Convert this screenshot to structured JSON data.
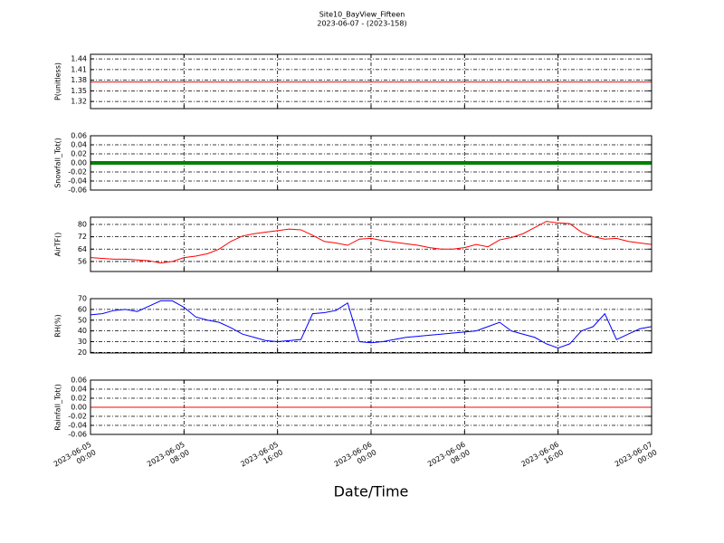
{
  "chart_data": [
    {
      "type": "line",
      "title": "Site10_BayView_Fifteen",
      "subtitle": "2023-06-07 - (2023-158)",
      "ylabel": "P(unitless)",
      "xlim": [
        "2023-06-05 00:00",
        "2023-06-07 00:00"
      ],
      "ylim": [
        1.3,
        1.453
      ],
      "yticks": [
        1.32,
        1.35,
        1.38,
        1.41,
        1.44
      ],
      "grid": true,
      "x": [
        "2023-06-05 00:00",
        "2023-06-05 01:00",
        "2023-06-05 02:00",
        "2023-06-05 03:00",
        "2023-06-05 04:00",
        "2023-06-05 05:00",
        "2023-06-05 06:00",
        "2023-06-05 07:00",
        "2023-06-05 08:00",
        "2023-06-05 09:00",
        "2023-06-05 10:00",
        "2023-06-05 11:00",
        "2023-06-05 12:00",
        "2023-06-05 13:00",
        "2023-06-05 14:00",
        "2023-06-05 15:00",
        "2023-06-05 16:00",
        "2023-06-05 17:00",
        "2023-06-05 18:00",
        "2023-06-05 19:00",
        "2023-06-05 20:00",
        "2023-06-05 21:00",
        "2023-06-05 22:00",
        "2023-06-05 23:00",
        "2023-06-06 00:00",
        "2023-06-06 01:00",
        "2023-06-06 02:00",
        "2023-06-06 03:00",
        "2023-06-06 04:00",
        "2023-06-06 05:00",
        "2023-06-06 06:00",
        "2023-06-06 07:00",
        "2023-06-06 08:00",
        "2023-06-06 09:00",
        "2023-06-06 10:00",
        "2023-06-06 11:00",
        "2023-06-06 12:00",
        "2023-06-06 13:00",
        "2023-06-06 14:00",
        "2023-06-06 15:00",
        "2023-06-06 16:00",
        "2023-06-06 17:00",
        "2023-06-06 18:00",
        "2023-06-06 19:00",
        "2023-06-06 20:00",
        "2023-06-06 21:00",
        "2023-06-06 22:00",
        "2023-06-06 23:00",
        "2023-06-07 00:00"
      ],
      "series": [
        {
          "name": "P",
          "color": "#ff0000",
          "width": 1,
          "values": [
            1.375,
            1.375,
            1.375,
            1.375,
            1.375,
            1.375,
            1.375,
            1.375,
            1.375,
            1.375,
            1.375,
            1.375,
            1.375,
            1.375,
            1.375,
            1.375,
            1.375,
            1.375,
            1.375,
            1.375,
            1.375,
            1.375,
            1.375,
            1.375,
            1.375,
            1.375,
            1.375,
            1.375,
            1.375,
            1.375,
            1.375,
            1.375,
            1.375,
            1.375,
            1.375,
            1.375,
            1.375,
            1.375,
            1.375,
            1.375,
            1.375,
            1.375,
            1.375,
            1.375,
            1.375,
            1.375,
            1.375,
            1.375,
            1.375
          ]
        }
      ]
    },
    {
      "type": "line",
      "ylabel": "Snowfall_Tot()",
      "xlim": [
        "2023-06-05 00:00",
        "2023-06-07 00:00"
      ],
      "ylim": [
        -0.06,
        0.06
      ],
      "yticks": [
        -0.06,
        -0.04,
        -0.02,
        {
          "value": 0,
          "label": "0.00"
        },
        0.02,
        0.04,
        0.06
      ],
      "grid": true,
      "x": [
        "2023-06-05 00:00",
        "2023-06-05 01:00",
        "2023-06-05 02:00",
        "2023-06-05 03:00",
        "2023-06-05 04:00",
        "2023-06-05 05:00",
        "2023-06-05 06:00",
        "2023-06-05 07:00",
        "2023-06-05 08:00",
        "2023-06-05 09:00",
        "2023-06-05 10:00",
        "2023-06-05 11:00",
        "2023-06-05 12:00",
        "2023-06-05 13:00",
        "2023-06-05 14:00",
        "2023-06-05 15:00",
        "2023-06-05 16:00",
        "2023-06-05 17:00",
        "2023-06-05 18:00",
        "2023-06-05 19:00",
        "2023-06-05 20:00",
        "2023-06-05 21:00",
        "2023-06-05 22:00",
        "2023-06-05 23:00",
        "2023-06-06 00:00",
        "2023-06-06 01:00",
        "2023-06-06 02:00",
        "2023-06-06 03:00",
        "2023-06-06 04:00",
        "2023-06-06 05:00",
        "2023-06-06 06:00",
        "2023-06-06 07:00",
        "2023-06-06 08:00",
        "2023-06-06 09:00",
        "2023-06-06 10:00",
        "2023-06-06 11:00",
        "2023-06-06 12:00",
        "2023-06-06 13:00",
        "2023-06-06 14:00",
        "2023-06-06 15:00",
        "2023-06-06 16:00",
        "2023-06-06 17:00",
        "2023-06-06 18:00",
        "2023-06-06 19:00",
        "2023-06-06 20:00",
        "2023-06-06 21:00",
        "2023-06-06 22:00",
        "2023-06-06 23:00",
        "2023-06-07 00:00"
      ],
      "series": [
        {
          "name": "Snowfall_Tot",
          "color": "#008000",
          "width": 4,
          "values": [
            0,
            0,
            0,
            0,
            0,
            0,
            0,
            0,
            0,
            0,
            0,
            0,
            0,
            0,
            0,
            0,
            0,
            0,
            0,
            0,
            0,
            0,
            0,
            0,
            0,
            0,
            0,
            0,
            0,
            0,
            0,
            0,
            0,
            0,
            0,
            0,
            0,
            0,
            0,
            0,
            0,
            0,
            0,
            0,
            0,
            0,
            0,
            0,
            0
          ]
        }
      ]
    },
    {
      "type": "line",
      "ylabel": "AirTF()",
      "xlim": [
        "2023-06-05 00:00",
        "2023-06-07 00:00"
      ],
      "ylim": [
        49.5,
        84.7
      ],
      "yticks": [
        56,
        64,
        72,
        80
      ],
      "grid": true,
      "x": [
        "2023-06-05 00:00",
        "2023-06-05 01:00",
        "2023-06-05 02:00",
        "2023-06-05 03:00",
        "2023-06-05 04:00",
        "2023-06-05 05:00",
        "2023-06-05 06:00",
        "2023-06-05 07:00",
        "2023-06-05 08:00",
        "2023-06-05 09:00",
        "2023-06-05 10:00",
        "2023-06-05 11:00",
        "2023-06-05 12:00",
        "2023-06-05 13:00",
        "2023-06-05 14:00",
        "2023-06-05 15:00",
        "2023-06-05 16:00",
        "2023-06-05 17:00",
        "2023-06-05 18:00",
        "2023-06-05 19:00",
        "2023-06-05 20:00",
        "2023-06-05 21:00",
        "2023-06-05 22:00",
        "2023-06-05 23:00",
        "2023-06-06 00:00",
        "2023-06-06 01:00",
        "2023-06-06 02:00",
        "2023-06-06 03:00",
        "2023-06-06 04:00",
        "2023-06-06 05:00",
        "2023-06-06 06:00",
        "2023-06-06 07:00",
        "2023-06-06 08:00",
        "2023-06-06 09:00",
        "2023-06-06 10:00",
        "2023-06-06 11:00",
        "2023-06-06 12:00",
        "2023-06-06 13:00",
        "2023-06-06 14:00",
        "2023-06-06 15:00",
        "2023-06-06 16:00",
        "2023-06-06 17:00",
        "2023-06-06 18:00",
        "2023-06-06 19:00",
        "2023-06-06 20:00",
        "2023-06-06 21:00",
        "2023-06-06 22:00",
        "2023-06-06 23:00",
        "2023-06-07 00:00"
      ],
      "series": [
        {
          "name": "AirTF",
          "color": "#ff0000",
          "width": 1,
          "values": [
            58.5,
            58,
            57.5,
            57.5,
            57,
            56.5,
            55,
            56,
            58.5,
            59.5,
            61,
            64,
            69,
            72.5,
            74,
            75,
            76,
            77,
            76.5,
            73,
            69,
            68,
            66.5,
            70.5,
            71,
            69.5,
            68.5,
            67.5,
            66.5,
            65,
            64,
            64,
            65,
            67,
            65.5,
            70,
            71.5,
            74,
            78,
            82,
            81,
            80.5,
            75,
            72,
            70.5,
            71,
            69,
            68,
            67
          ]
        }
      ]
    },
    {
      "type": "line",
      "ylabel": "RH(%)",
      "xlim": [
        "2023-06-05 00:00",
        "2023-06-07 00:00"
      ],
      "ylim": [
        19.5,
        70
      ],
      "yticks": [
        20,
        30,
        40,
        50,
        60,
        70
      ],
      "grid": true,
      "x": [
        "2023-06-05 00:00",
        "2023-06-05 01:00",
        "2023-06-05 02:00",
        "2023-06-05 03:00",
        "2023-06-05 04:00",
        "2023-06-05 05:00",
        "2023-06-05 06:00",
        "2023-06-05 07:00",
        "2023-06-05 08:00",
        "2023-06-05 09:00",
        "2023-06-05 10:00",
        "2023-06-05 11:00",
        "2023-06-05 12:00",
        "2023-06-05 13:00",
        "2023-06-05 14:00",
        "2023-06-05 15:00",
        "2023-06-05 16:00",
        "2023-06-05 17:00",
        "2023-06-05 18:00",
        "2023-06-05 19:00",
        "2023-06-05 20:00",
        "2023-06-05 21:00",
        "2023-06-05 22:00",
        "2023-06-05 23:00",
        "2023-06-06 00:00",
        "2023-06-06 01:00",
        "2023-06-06 02:00",
        "2023-06-06 03:00",
        "2023-06-06 04:00",
        "2023-06-06 05:00",
        "2023-06-06 06:00",
        "2023-06-06 07:00",
        "2023-06-06 08:00",
        "2023-06-06 09:00",
        "2023-06-06 10:00",
        "2023-06-06 11:00",
        "2023-06-06 12:00",
        "2023-06-06 13:00",
        "2023-06-06 14:00",
        "2023-06-06 15:00",
        "2023-06-06 16:00",
        "2023-06-06 17:00",
        "2023-06-06 18:00",
        "2023-06-06 19:00",
        "2023-06-06 20:00",
        "2023-06-06 21:00",
        "2023-06-06 22:00",
        "2023-06-06 23:00",
        "2023-06-07 00:00"
      ],
      "series": [
        {
          "name": "RH",
          "color": "#0000ff",
          "width": 1,
          "values": [
            55,
            56,
            59,
            60,
            58,
            63,
            68,
            68,
            62,
            53,
            50,
            48,
            43,
            37,
            34,
            31,
            30,
            31,
            32,
            56,
            57,
            59,
            66,
            30,
            29,
            30,
            32,
            34,
            35,
            36,
            37,
            38,
            39,
            40,
            44,
            48,
            40,
            37,
            34,
            28,
            24,
            28,
            40,
            44,
            56,
            32,
            37,
            42,
            44
          ]
        }
      ]
    },
    {
      "type": "line",
      "ylabel": "Rainfall_Tot()",
      "xlabel": "Date/Time",
      "xlim": [
        "2023-06-05 00:00",
        "2023-06-07 00:00"
      ],
      "ylim": [
        -0.06,
        0.06
      ],
      "yticks": [
        -0.06,
        -0.04,
        -0.02,
        {
          "value": 0,
          "label": "0.00"
        },
        0.02,
        0.04,
        0.06
      ],
      "grid": true,
      "xticks": [
        "2023-06-05 00:00",
        "2023-06-05 08:00",
        "2023-06-05 16:00",
        "2023-06-06 00:00",
        "2023-06-06 08:00",
        "2023-06-06 16:00",
        "2023-06-07 00:00"
      ],
      "x": [
        "2023-06-05 00:00",
        "2023-06-05 01:00",
        "2023-06-05 02:00",
        "2023-06-05 03:00",
        "2023-06-05 04:00",
        "2023-06-05 05:00",
        "2023-06-05 06:00",
        "2023-06-05 07:00",
        "2023-06-05 08:00",
        "2023-06-05 09:00",
        "2023-06-05 10:00",
        "2023-06-05 11:00",
        "2023-06-05 12:00",
        "2023-06-05 13:00",
        "2023-06-05 14:00",
        "2023-06-05 15:00",
        "2023-06-05 16:00",
        "2023-06-05 17:00",
        "2023-06-05 18:00",
        "2023-06-05 19:00",
        "2023-06-05 20:00",
        "2023-06-05 21:00",
        "2023-06-05 22:00",
        "2023-06-05 23:00",
        "2023-06-06 00:00",
        "2023-06-06 01:00",
        "2023-06-06 02:00",
        "2023-06-06 03:00",
        "2023-06-06 04:00",
        "2023-06-06 05:00",
        "2023-06-06 06:00",
        "2023-06-06 07:00",
        "2023-06-06 08:00",
        "2023-06-06 09:00",
        "2023-06-06 10:00",
        "2023-06-06 11:00",
        "2023-06-06 12:00",
        "2023-06-06 13:00",
        "2023-06-06 14:00",
        "2023-06-06 15:00",
        "2023-06-06 16:00",
        "2023-06-06 17:00",
        "2023-06-06 18:00",
        "2023-06-06 19:00",
        "2023-06-06 20:00",
        "2023-06-06 21:00",
        "2023-06-06 22:00",
        "2023-06-06 23:00",
        "2023-06-07 00:00"
      ],
      "series": [
        {
          "name": "Rainfall_Tot",
          "color": "#ff0000",
          "width": 1,
          "values": [
            0,
            0,
            0,
            0,
            0,
            0,
            0,
            0,
            0,
            0,
            0,
            0,
            0,
            0,
            0,
            0,
            0,
            0,
            0,
            0,
            0,
            0,
            0,
            0,
            0,
            0,
            0,
            0,
            0,
            0,
            0,
            0,
            0,
            0,
            0,
            0,
            0,
            0,
            0,
            0,
            0,
            0,
            0,
            0,
            0,
            0,
            0,
            0,
            0
          ]
        }
      ]
    }
  ]
}
